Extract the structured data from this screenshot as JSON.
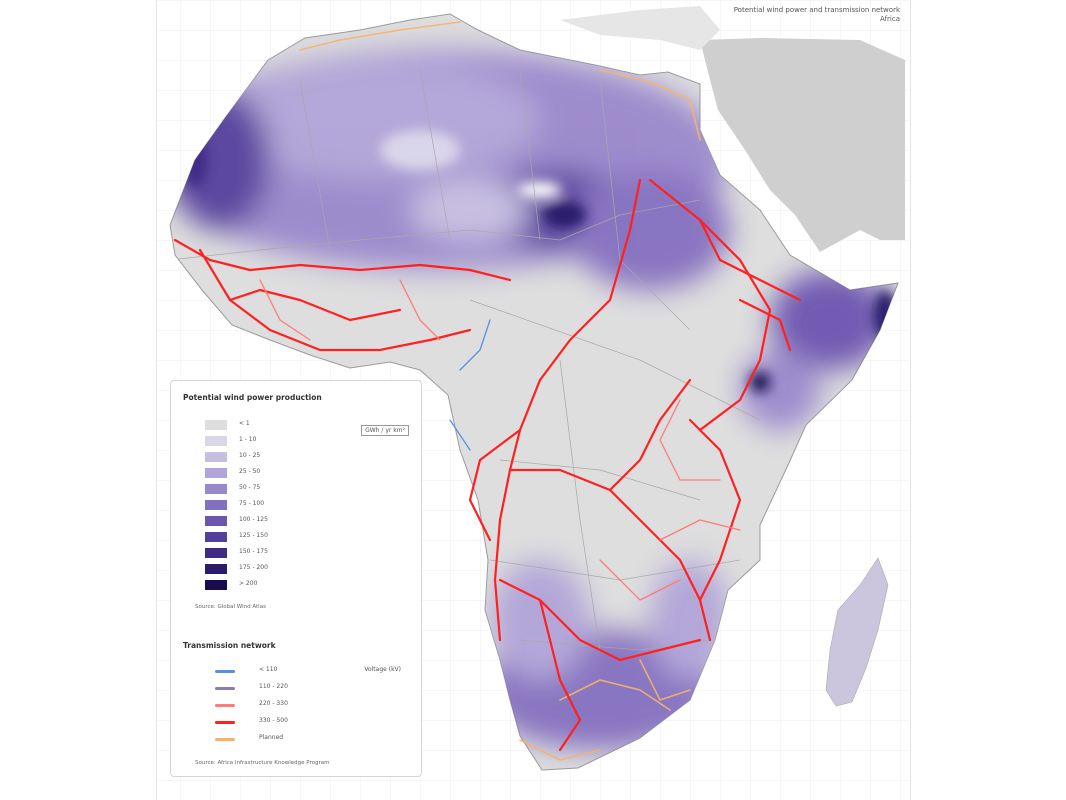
{
  "header": {
    "line1": "Potential wind power and transmission network",
    "line2": "Africa"
  },
  "wind_legend": {
    "title": "Potential wind power production",
    "unit": "GWh / yr km²",
    "classes": [
      {
        "label": "< 1",
        "color": "#dedede"
      },
      {
        "label": "1 - 10",
        "color": "#dad6ea"
      },
      {
        "label": "10 - 25",
        "color": "#c7bfe2"
      },
      {
        "label": "25 - 50",
        "color": "#b1a4d8"
      },
      {
        "label": "50 - 75",
        "color": "#9a88cc"
      },
      {
        "label": "75 - 100",
        "color": "#8470c0"
      },
      {
        "label": "100 - 125",
        "color": "#6c55b0"
      },
      {
        "label": "125 - 150",
        "color": "#553f9c"
      },
      {
        "label": "150 - 175",
        "color": "#3f2a85"
      },
      {
        "label": "175 - 200",
        "color": "#2c1a6c"
      },
      {
        "label": "> 200",
        "color": "#180c4f"
      }
    ],
    "source_line1": "Source: Global Wind Atlas",
    "source_line2": ""
  },
  "transmission_legend": {
    "title": "Transmission network",
    "unit": "Voltage (kV)",
    "classes": [
      {
        "label": "< 110",
        "color": "#5a8fe0"
      },
      {
        "label": "110 - 220",
        "color": "#8d7ab0"
      },
      {
        "label": "220 - 330",
        "color": "#ff7b7b"
      },
      {
        "label": "330 - 500",
        "color": "#ff2020"
      },
      {
        "label": "Planned",
        "color": "#f6b26b"
      }
    ],
    "source_line1": "Source: Africa Infrastructure Knowledge Program",
    "source_line2": ""
  },
  "colors": {
    "land": "#dedede",
    "ocean": "#ffffff",
    "grid": "#ebebeb",
    "border": "#a8a8a8"
  }
}
